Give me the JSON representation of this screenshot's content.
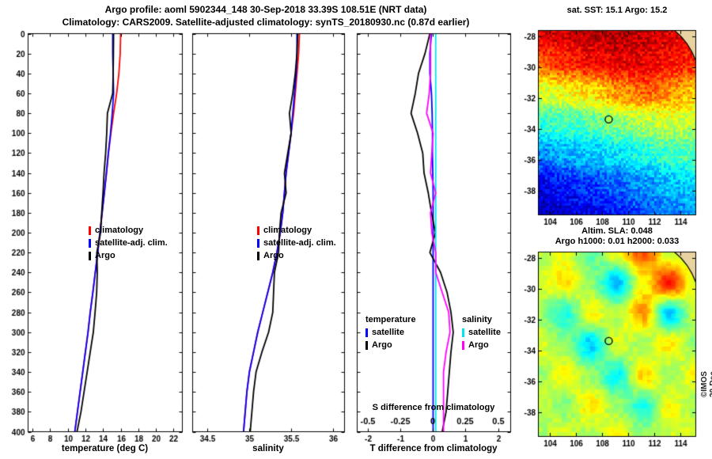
{
  "titles": {
    "line1": "Argo profile: aoml 5902344_148 30-Sep-2018 33.39S 108.51E (NRT data)",
    "line2": "Climatology: CARS2009. Satellite-adjusted climatology: synTS_20180930.nc (0.87d earlier)"
  },
  "watermark": "©IMOS 20-Dec-2018 04.20.59",
  "colors": {
    "climatology": "#ff0000",
    "satellite_adjusted": "#0000ff",
    "argo": "#000000",
    "salinity_satellite": "#00e5ee",
    "salinity_argo": "#ff00ff",
    "land": "#e8d3a0"
  },
  "chart_data": [
    {
      "id": "temperature_profile",
      "type": "line",
      "xlabel": "temperature (deg C)",
      "xlim": [
        5.5,
        23
      ],
      "xticks": [
        6,
        8,
        10,
        12,
        14,
        16,
        18,
        20,
        22
      ],
      "ylim": [
        0,
        400
      ],
      "ytick_step": 20,
      "depths": [
        0,
        20,
        40,
        60,
        80,
        100,
        120,
        140,
        160,
        180,
        200,
        220,
        240,
        260,
        280,
        300,
        320,
        340,
        360,
        380,
        400
      ],
      "series": [
        {
          "name": "climatology",
          "color": "#ff0000",
          "values": [
            16.0,
            15.95,
            15.8,
            15.55,
            15.2,
            14.9,
            14.62,
            14.4,
            14.15,
            13.9,
            13.65,
            13.4,
            13.12,
            12.85,
            12.55,
            12.3,
            12.0,
            11.7,
            11.4,
            11.1,
            10.8
          ]
        },
        {
          "name": "satellite-adj. clim.",
          "color": "#0000ff",
          "values": [
            15.1,
            15.1,
            15.15,
            15.2,
            15.05,
            14.85,
            14.6,
            14.38,
            14.15,
            13.9,
            13.65,
            13.4,
            13.12,
            12.85,
            12.55,
            12.3,
            12.0,
            11.7,
            11.4,
            11.1,
            10.8
          ]
        },
        {
          "name": "Argo",
          "color": "#000000",
          "values": [
            15.2,
            15.18,
            15.15,
            15.1,
            14.5,
            14.42,
            14.3,
            14.12,
            14.0,
            13.85,
            13.72,
            13.3,
            13.35,
            13.28,
            13.1,
            12.9,
            12.55,
            12.2,
            11.85,
            11.5,
            11.05
          ]
        }
      ]
    },
    {
      "id": "salinity_profile",
      "type": "line",
      "xlabel": "salinity",
      "xlim": [
        34.32,
        36.14
      ],
      "xticks": [
        34.5,
        35,
        35.5,
        36
      ],
      "ylim": [
        0,
        400
      ],
      "ytick_step": 20,
      "depths": [
        0,
        20,
        40,
        60,
        80,
        100,
        120,
        140,
        160,
        180,
        200,
        220,
        240,
        260,
        280,
        300,
        320,
        340,
        360,
        380,
        400
      ],
      "series": [
        {
          "name": "climatology",
          "color": "#ff0000",
          "values": [
            35.6,
            35.59,
            35.57,
            35.55,
            35.53,
            35.5,
            35.47,
            35.44,
            35.42,
            35.4,
            35.37,
            35.33,
            35.28,
            35.22,
            35.16,
            35.1,
            35.05,
            35.0,
            34.97,
            34.95,
            34.93
          ]
        },
        {
          "name": "satellite-adj. clim.",
          "color": "#0000ff",
          "values": [
            35.57,
            35.57,
            35.56,
            35.54,
            35.52,
            35.5,
            35.47,
            35.44,
            35.42,
            35.4,
            35.37,
            35.33,
            35.28,
            35.22,
            35.16,
            35.1,
            35.05,
            35.0,
            34.97,
            34.95,
            34.93
          ]
        },
        {
          "name": "Argo",
          "color": "#000000",
          "values": [
            35.58,
            35.57,
            35.55,
            35.52,
            35.48,
            35.5,
            35.46,
            35.42,
            35.44,
            35.38,
            35.36,
            35.35,
            35.3,
            35.29,
            35.28,
            35.23,
            35.15,
            35.08,
            35.05,
            35.03,
            35.01
          ]
        }
      ]
    },
    {
      "id": "difference_profile",
      "type": "line",
      "xlabel": "T difference from climatology",
      "x2label": "S difference from climatology",
      "xlim": [
        -2.34,
        2.39
      ],
      "xticks": [
        -2,
        -1,
        0,
        1,
        2
      ],
      "s_ticks": [
        "-0.5",
        "-0.25",
        "0",
        "0.25",
        "0.5"
      ],
      "s_scale": 4,
      "ylim": [
        0,
        400
      ],
      "ytick_step": 20,
      "legend_left_title": "temperature",
      "legend_right_title": "salinity",
      "depths": [
        0,
        20,
        40,
        60,
        80,
        100,
        120,
        140,
        160,
        180,
        200,
        220,
        240,
        260,
        280,
        300,
        320,
        340,
        360,
        380,
        400
      ],
      "series": [
        {
          "name": "satellite",
          "group": "temperature",
          "axis": "T",
          "color": "#0000ff",
          "values": [
            -0.05,
            -0.1,
            -0.1,
            -0.05,
            -0.03,
            -0.02,
            -0.02,
            -0.01,
            0,
            0,
            0,
            0,
            0,
            0,
            0,
            0,
            0,
            0,
            0,
            0,
            0
          ]
        },
        {
          "name": "Argo",
          "group": "temperature",
          "axis": "T",
          "color": "#000000",
          "values": [
            -0.1,
            -0.25,
            -0.45,
            -0.55,
            -0.68,
            -0.48,
            -0.32,
            -0.28,
            -0.15,
            -0.05,
            0.07,
            -0.1,
            0.23,
            0.43,
            0.55,
            0.62,
            0.55,
            0.5,
            0.45,
            0.4,
            0.28
          ]
        },
        {
          "name": "satellite",
          "group": "salinity",
          "axis": "S",
          "color": "#00e5ee",
          "values": [
            0.02,
            0.02,
            0.02,
            0.02,
            0.02,
            0.02,
            0.02,
            0.02,
            0.02,
            0.02,
            0.02,
            0.02,
            0.02,
            0.02,
            0.02,
            0.02,
            0.02,
            0.02,
            0.02,
            0.02,
            0.02
          ]
        },
        {
          "name": "Argo",
          "group": "salinity",
          "axis": "S",
          "color": "#ff00ff",
          "values": [
            -0.02,
            -0.02,
            -0.02,
            -0.03,
            -0.05,
            0.0,
            -0.01,
            -0.02,
            0.02,
            -0.02,
            -0.01,
            0.02,
            0.02,
            0.07,
            0.12,
            0.13,
            0.1,
            0.08,
            0.08,
            0.08,
            0.08
          ]
        }
      ]
    },
    {
      "id": "sst_map",
      "type": "heatmap",
      "title": "sat. SST: 15.1 Argo: 15.2",
      "xlim": [
        103.1,
        115.2
      ],
      "ylim": [
        -39.6,
        -27.6
      ],
      "xticks": [
        104,
        106,
        108,
        110,
        112,
        114
      ],
      "yticks": [
        -28,
        -30,
        -32,
        -34,
        -36,
        -38
      ],
      "marker": {
        "lon": 108.51,
        "lat": -33.39
      },
      "value_range": [
        11.5,
        19.6
      ],
      "noise": 0.55,
      "grid": [
        [
          18.8,
          19.0,
          19.2,
          19.3,
          19.1,
          18.9,
          18.7
        ],
        [
          18.0,
          18.3,
          18.6,
          18.8,
          18.8,
          18.5,
          18.3
        ],
        [
          16.2,
          16.5,
          16.8,
          17.4,
          17.8,
          17.5,
          17.0
        ],
        [
          14.9,
          15.1,
          15.3,
          15.6,
          15.9,
          16.2,
          16.0
        ],
        [
          13.6,
          13.9,
          14.1,
          14.4,
          14.7,
          15.0,
          15.2
        ],
        [
          12.4,
          12.7,
          13.0,
          13.3,
          13.7,
          14.0,
          14.3
        ],
        [
          11.9,
          12.1,
          12.4,
          12.8,
          13.1,
          13.5,
          13.8
        ]
      ]
    },
    {
      "id": "sla_map",
      "type": "heatmap",
      "title_line1": "Altim. SLA: 0.048",
      "title_line2": "Argo h1000: 0.01 h2000: 0.033",
      "xlim": [
        103.1,
        115.2
      ],
      "ylim": [
        -39.6,
        -27.6
      ],
      "xticks": [
        104,
        106,
        108,
        110,
        112,
        114
      ],
      "yticks": [
        -28,
        -30,
        -32,
        -34,
        -36,
        -38
      ],
      "marker": {
        "lon": 108.51,
        "lat": -33.39
      },
      "value_range": [
        -0.2,
        0.2
      ],
      "noise": 0.012,
      "grid": [
        [
          0.02,
          0.04,
          -0.02,
          0.05,
          0.12,
          0.03,
          0.01
        ],
        [
          0.03,
          0.06,
          0.01,
          -0.08,
          0.05,
          0.14,
          0.04
        ],
        [
          0.01,
          -0.04,
          0.05,
          0.02,
          0.09,
          -0.07,
          0.03
        ],
        [
          0.04,
          0.01,
          -0.07,
          0.04,
          0.01,
          0.06,
          0.0
        ],
        [
          0.01,
          0.05,
          0.01,
          -0.05,
          0.07,
          0.01,
          0.05
        ],
        [
          0.03,
          0.0,
          0.06,
          0.01,
          -0.04,
          0.05,
          0.01
        ],
        [
          0.01,
          0.04,
          0.01,
          0.05,
          0.01,
          0.03,
          0.04
        ]
      ]
    }
  ]
}
